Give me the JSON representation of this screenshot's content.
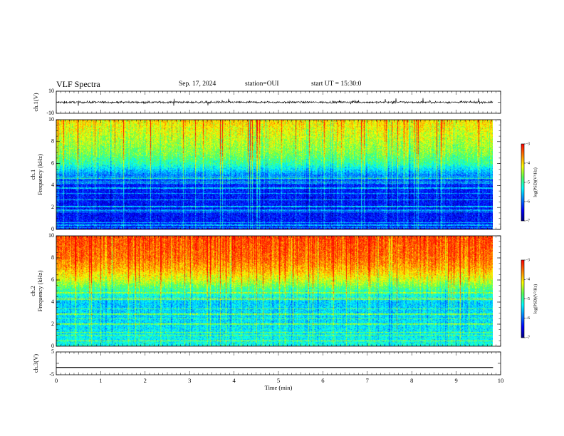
{
  "header": {
    "title": "VLF Spectra",
    "date": "Sep. 17, 2024",
    "station": "station=OUI",
    "start": "start UT = 15:30:0"
  },
  "colormap": [
    "#00007f",
    "#0000ff",
    "#0080ff",
    "#00ffff",
    "#55ff55",
    "#ffff00",
    "#ff8000",
    "#ff0000"
  ],
  "chart_data": [
    {
      "type": "line",
      "ylabel": "ch.1(V)",
      "ylim": [
        -10,
        10
      ],
      "yticks": [
        "10",
        "-10"
      ],
      "series": [
        {
          "description": "noisy waveform centered near 0 V, amplitude about ±2 V with occasional spikes",
          "mean": 0,
          "amplitude": 2
        }
      ]
    },
    {
      "type": "heatmap",
      "ylabel_top": "ch.1",
      "ylabel": "Frequency (kHz)",
      "ylim": [
        0,
        10
      ],
      "yticks": [
        "0",
        "2",
        "4",
        "6",
        "8",
        "10"
      ],
      "colorbar": {
        "label": "log(PSD)(V²/Hz)",
        "range": [
          -7,
          -3
        ],
        "ticks": [
          "-3",
          "-4",
          "-5",
          "-6",
          "-7"
        ]
      },
      "profile": {
        "freq_khz": [
          0,
          2,
          4,
          5,
          6,
          7,
          8,
          9,
          10
        ],
        "log_psd": [
          -6.3,
          -6.4,
          -6.3,
          -5.8,
          -5.0,
          -4.6,
          -4.4,
          -4.2,
          -4.0
        ]
      }
    },
    {
      "type": "heatmap",
      "ylabel_top": "ch.2",
      "ylabel": "Frequency (kHz)",
      "ylim": [
        0,
        10
      ],
      "yticks": [
        "0",
        "2",
        "4",
        "6",
        "8",
        "10"
      ],
      "colorbar": {
        "label": "log(PSD)(V²/Hz)",
        "range": [
          -7,
          -3
        ],
        "ticks": [
          "-3",
          "-4",
          "-5",
          "-6",
          "-7"
        ]
      },
      "profile": {
        "freq_khz": [
          0,
          2,
          4,
          5,
          6,
          7,
          8,
          9,
          10
        ],
        "log_psd": [
          -5.2,
          -5.4,
          -5.5,
          -5.0,
          -4.3,
          -3.8,
          -3.5,
          -3.4,
          -3.3
        ]
      }
    },
    {
      "type": "line",
      "ylabel": "ch.3(V)",
      "ylim": [
        -5,
        5
      ],
      "yticks": [
        "5",
        "-5"
      ],
      "series": [
        {
          "description": "flat line",
          "mean": -1.8,
          "amplitude": 0
        }
      ]
    }
  ],
  "xaxis": {
    "label": "Time (min)",
    "xlim": [
      0,
      10
    ],
    "ticks": [
      "0",
      "1",
      "2",
      "3",
      "4",
      "5",
      "6",
      "7",
      "8",
      "9",
      "10"
    ],
    "data_end": 9.83
  }
}
